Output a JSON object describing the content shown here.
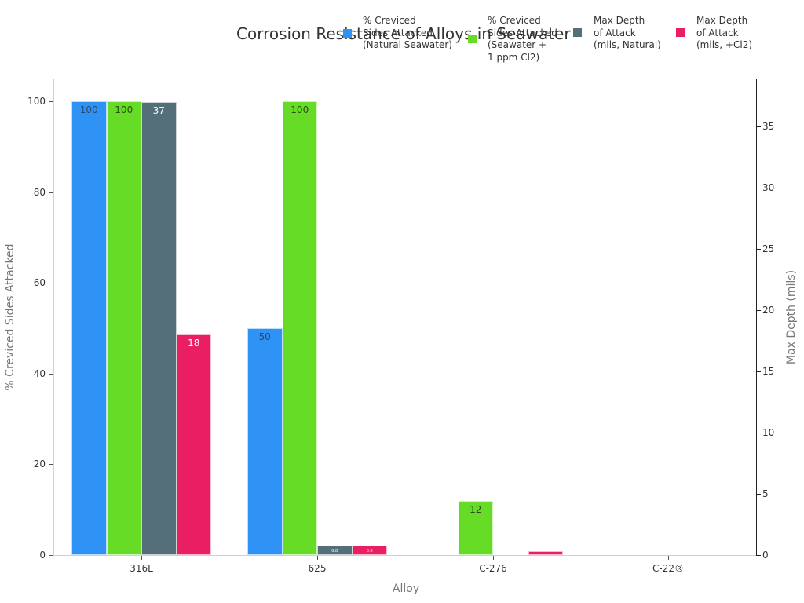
{
  "chart_data": {
    "type": "bar",
    "title": "Corrosion Resistance of Alloys in Seawater",
    "xlabel": "Alloy",
    "ylabel": "% Creviced Sides Attacked",
    "ylabel_right": "Max Depth (mils)",
    "categories": [
      "316L",
      "625",
      "C-276",
      "C-22®"
    ],
    "ylim": [
      0,
      105
    ],
    "ylim_right": [
      0,
      38.9
    ],
    "yticks": [
      0,
      20,
      40,
      60,
      80,
      100
    ],
    "yticks_right": [
      0,
      5,
      10,
      15,
      20,
      25,
      30,
      35
    ],
    "grid": false,
    "legend_position": "top-right",
    "series": [
      {
        "name": "% Creviced Sides Attacked (Natural Seawater)",
        "axis": "left",
        "color": "#2e93f5",
        "values": [
          100,
          50,
          0,
          0
        ],
        "labels": [
          "100",
          "50",
          "",
          ""
        ],
        "label_color": "#2a4a6a"
      },
      {
        "name": "% Creviced Sides Attacked (Seawater + 1 ppm Cl2)",
        "axis": "left",
        "color": "#66dc27",
        "values": [
          100,
          100,
          12,
          0
        ],
        "labels": [
          "100",
          "100",
          "12",
          ""
        ],
        "label_color": "#2f4a1a"
      },
      {
        "name": "Max Depth of Attack (mils, Natural)",
        "axis": "right",
        "color": "#546e7a",
        "values": [
          37,
          0.8,
          0,
          0
        ],
        "labels": [
          "37",
          "0.8",
          "",
          ""
        ],
        "label_color": "#ffffff"
      },
      {
        "name": "Max Depth of Attack (mils, +Cl2)",
        "axis": "right",
        "color": "#e91e63",
        "values": [
          18,
          0.8,
          0.3,
          0
        ],
        "labels": [
          "18",
          "0.8",
          "",
          ""
        ],
        "label_color": "#ffffff"
      }
    ]
  },
  "legend": [
    {
      "text": "% Creviced\nSides Attacked\n(Natural Seawater)",
      "color": "#2e93f5"
    },
    {
      "text": "% Creviced\nSides Attacked\n(Seawater +\n1 ppm Cl2)",
      "color": "#66dc27"
    },
    {
      "text": "Max Depth\nof Attack\n(mils, Natural)",
      "color": "#546e7a"
    },
    {
      "text": "Max Depth\nof Attack\n(mils, +Cl2)",
      "color": "#e91e63"
    }
  ]
}
